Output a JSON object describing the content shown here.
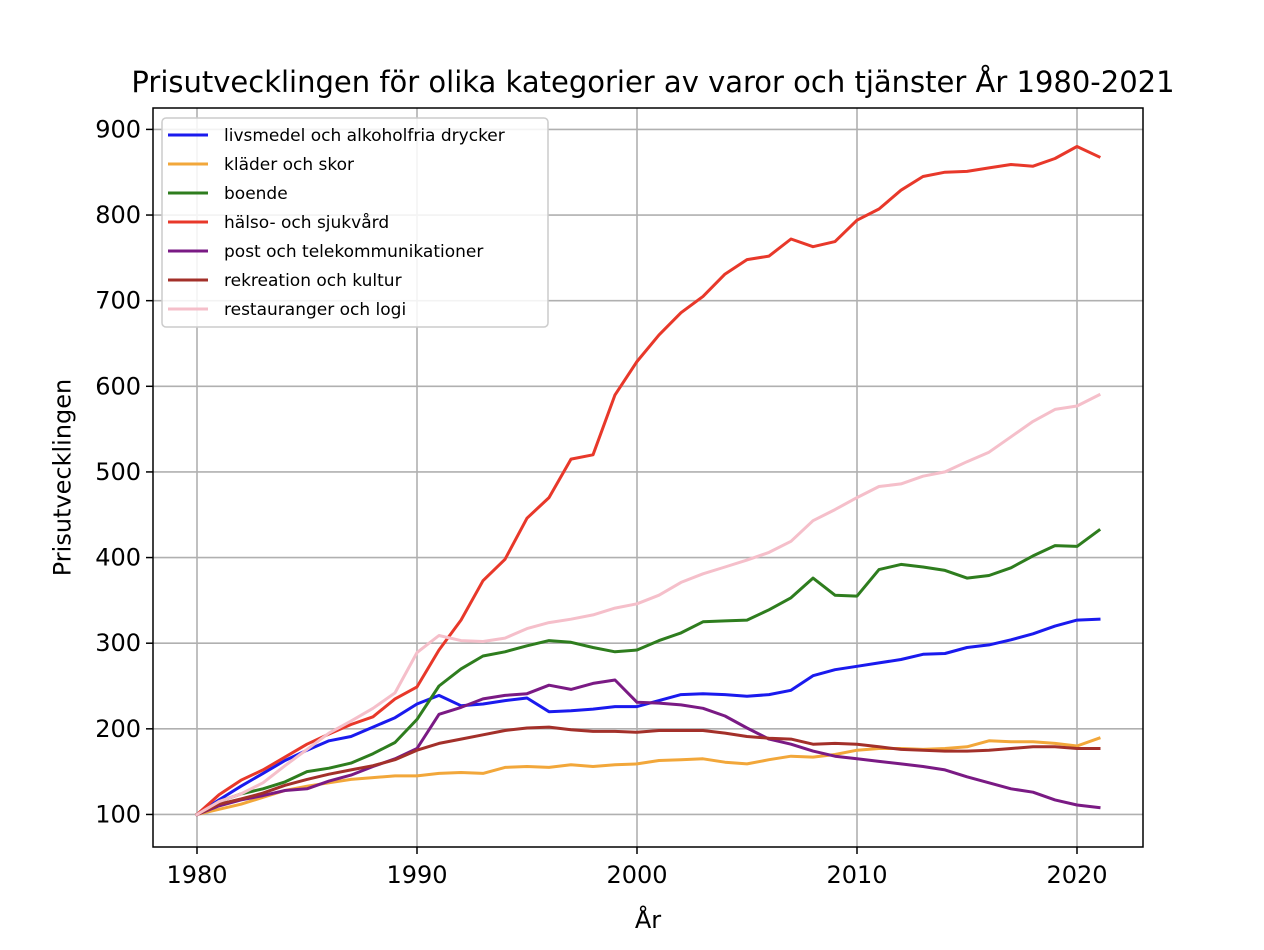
{
  "chart_data": {
    "type": "line",
    "title": "Prisutvecklingen för olika kategorier av varor och tjänster År 1980-2021",
    "xlabel": "År",
    "ylabel": "Prisutvecklingen",
    "xlim": [
      1978,
      2023
    ],
    "ylim": [
      62,
      925
    ],
    "xticks": [
      1980,
      1990,
      2000,
      2010,
      2020
    ],
    "yticks": [
      100,
      200,
      300,
      400,
      500,
      600,
      700,
      800,
      900
    ],
    "grid": true,
    "legend_position": "upper-left",
    "x": [
      1980,
      1981,
      1982,
      1983,
      1984,
      1985,
      1986,
      1987,
      1988,
      1989,
      1990,
      1991,
      1992,
      1993,
      1994,
      1995,
      1996,
      1997,
      1998,
      1999,
      2000,
      2001,
      2002,
      2003,
      2004,
      2005,
      2006,
      2007,
      2008,
      2009,
      2010,
      2011,
      2012,
      2013,
      2014,
      2015,
      2016,
      2017,
      2018,
      2019,
      2020,
      2021
    ],
    "series": [
      {
        "name": "livsmedel och alkoholfria drycker",
        "color": "#1a1aee",
        "values": [
          100,
          117,
          133,
          148,
          163,
          175,
          186,
          191,
          202,
          213,
          229,
          239,
          227,
          229,
          233,
          236,
          220,
          221,
          223,
          226,
          226,
          233,
          240,
          241,
          240,
          238,
          240,
          245,
          262,
          269,
          273,
          277,
          281,
          287,
          288,
          295,
          298,
          304,
          311,
          320,
          327,
          328
        ]
      },
      {
        "name": "kläder och skor",
        "color": "#f2a73a",
        "values": [
          100,
          106,
          112,
          120,
          128,
          133,
          137,
          141,
          143,
          145,
          145,
          148,
          149,
          148,
          155,
          156,
          155,
          158,
          156,
          158,
          159,
          163,
          164,
          165,
          161,
          159,
          164,
          168,
          167,
          170,
          175,
          177,
          177,
          176,
          177,
          179,
          186,
          185,
          185,
          183,
          180,
          189
        ]
      },
      {
        "name": "boende",
        "color": "#2e7d1e",
        "values": [
          100,
          115,
          124,
          130,
          138,
          150,
          154,
          160,
          171,
          184,
          211,
          250,
          270,
          285,
          290,
          297,
          303,
          301,
          295,
          290,
          292,
          303,
          312,
          325,
          326,
          327,
          339,
          353,
          376,
          356,
          355,
          386,
          392,
          389,
          385,
          376,
          379,
          388,
          402,
          414,
          413,
          432
        ]
      },
      {
        "name": "hälso- och sjukvård",
        "color": "#e8382a",
        "values": [
          100,
          123,
          140,
          152,
          167,
          182,
          194,
          205,
          214,
          235,
          249,
          292,
          327,
          373,
          398,
          446,
          470,
          515,
          520,
          590,
          629,
          660,
          686,
          705,
          731,
          748,
          752,
          772,
          763,
          769,
          794,
          807,
          829,
          845,
          850,
          851,
          855,
          859,
          857,
          866,
          880,
          868
        ]
      },
      {
        "name": "post och telekommunikationer",
        "color": "#7a1a84",
        "values": [
          100,
          110,
          117,
          122,
          128,
          130,
          139,
          146,
          156,
          165,
          177,
          217,
          225,
          235,
          239,
          241,
          251,
          246,
          253,
          257,
          231,
          230,
          228,
          224,
          215,
          201,
          188,
          182,
          174,
          168,
          165,
          162,
          159,
          156,
          152,
          144,
          137,
          130,
          126,
          117,
          111,
          108
        ]
      },
      {
        "name": "rekreation och kultur",
        "color": "#a3302a",
        "values": [
          100,
          112,
          118,
          125,
          134,
          141,
          147,
          152,
          157,
          164,
          175,
          183,
          188,
          193,
          198,
          201,
          202,
          199,
          197,
          197,
          196,
          198,
          198,
          198,
          195,
          191,
          189,
          188,
          182,
          183,
          182,
          179,
          176,
          175,
          174,
          174,
          175,
          177,
          179,
          179,
          177,
          177
        ]
      },
      {
        "name": "restauranger och logi",
        "color": "#f5bfca",
        "values": [
          100,
          115,
          124,
          137,
          157,
          176,
          195,
          209,
          224,
          242,
          289,
          309,
          303,
          302,
          306,
          317,
          324,
          328,
          333,
          341,
          346,
          356,
          371,
          381,
          389,
          397,
          406,
          419,
          443,
          456,
          470,
          483,
          486,
          495,
          500,
          512,
          523,
          541,
          559,
          573,
          577,
          590
        ]
      }
    ]
  }
}
